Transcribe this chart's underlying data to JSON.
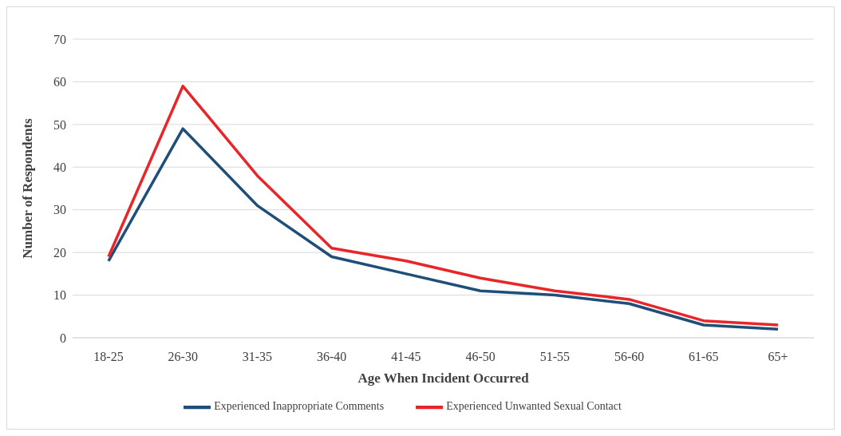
{
  "chart_data": {
    "type": "line",
    "xlabel": "Age When Incident Occurred",
    "ylabel": "Number of Respondents",
    "categories": [
      "18-25",
      "26-30",
      "31-35",
      "36-40",
      "41-45",
      "46-50",
      "51-55",
      "56-60",
      "61-65",
      "65+"
    ],
    "series": [
      {
        "name": "Experienced Inappropriate Comments",
        "color": "#1f4e79",
        "values": [
          18,
          49,
          31,
          19,
          15,
          11,
          10,
          8,
          3,
          2
        ]
      },
      {
        "name": "Experienced Unwanted Sexual Contact",
        "color": "#e8262a",
        "values": [
          19,
          59,
          38,
          21,
          18,
          14,
          11,
          9,
          4,
          3
        ]
      }
    ],
    "ylim": [
      0,
      70
    ],
    "yticks": [
      0,
      10,
      20,
      30,
      40,
      50,
      60,
      70
    ],
    "grid": "y",
    "legend": "bottom",
    "marker": "none",
    "line_style": "solid"
  }
}
